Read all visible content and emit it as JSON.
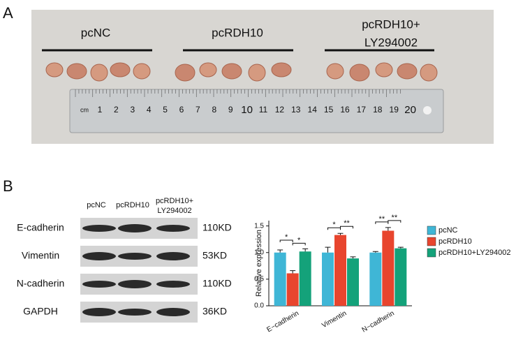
{
  "panel_a": {
    "label": "A",
    "group_labels": [
      "pcNC",
      "pcRDH10",
      "pcRDH10+",
      "LY294002"
    ],
    "ruler_unit": "cm",
    "ruler_numbers": [
      1,
      2,
      3,
      4,
      5,
      6,
      7,
      8,
      9,
      10,
      11,
      12,
      13,
      14,
      15,
      16,
      17,
      18,
      19,
      20
    ]
  },
  "panel_b": {
    "label": "B",
    "lanes": [
      "pcNC",
      "pcRDH10",
      "pcRDH10+",
      "LY294002"
    ],
    "proteins": [
      "E-cadherin",
      "Vimentin",
      "N-cadherin",
      "GAPDH"
    ],
    "sizes": [
      "110KD",
      "53KD",
      "110KD",
      "36KD"
    ]
  },
  "chart_data": {
    "type": "bar",
    "ylabel": "Relative expression",
    "categories": [
      "E−cadherin",
      "Vimentin",
      "N−cadherin"
    ],
    "series": [
      {
        "name": "pcNC",
        "color": "#3fb6d6",
        "values": [
          1.0,
          1.0,
          1.0
        ],
        "errors": [
          0.05,
          0.1,
          0.02
        ]
      },
      {
        "name": "pcRDH10",
        "color": "#e8452e",
        "values": [
          0.61,
          1.33,
          1.41
        ],
        "errors": [
          0.05,
          0.03,
          0.06
        ]
      },
      {
        "name": "pcRDH10+LY294002",
        "color": "#14a27a",
        "values": [
          1.02,
          0.89,
          1.08
        ],
        "errors": [
          0.05,
          0.03,
          0.02
        ]
      }
    ],
    "significance": [
      [
        "*",
        "*"
      ],
      [
        "*",
        "**"
      ],
      [
        "**",
        "**"
      ]
    ],
    "ylim": [
      0,
      1.6
    ],
    "yticks": [
      {
        "value": 0,
        "label": "0.0"
      },
      0.5,
      {
        "value": 1,
        "label": "1.0"
      },
      1.5
    ],
    "legend": "right"
  }
}
